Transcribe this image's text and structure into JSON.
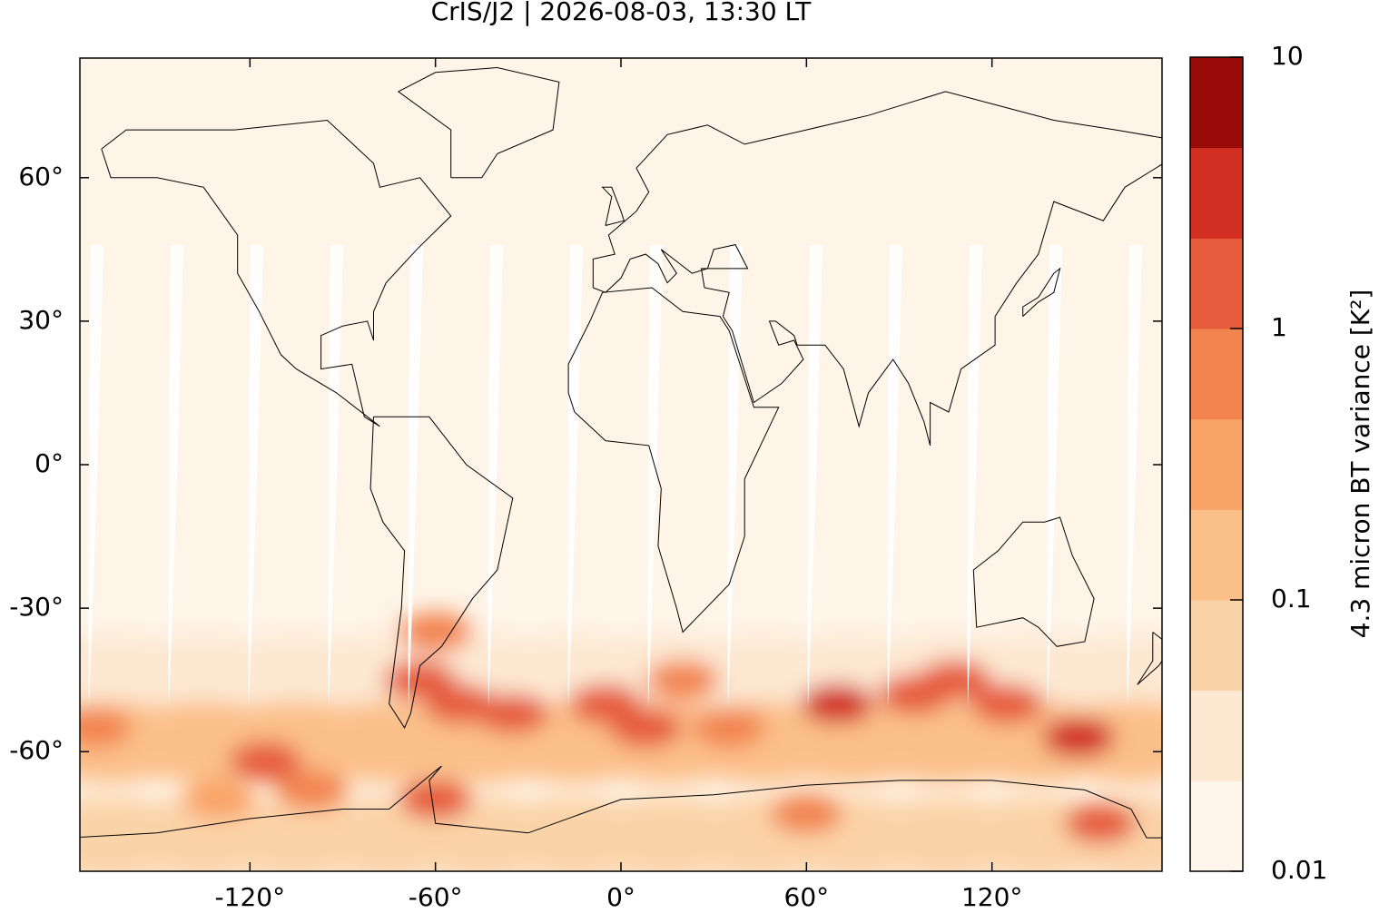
{
  "chart_data": {
    "type": "contour-map",
    "title": "CrIS/J2 | 2026-08-03, 13:30 LT",
    "xlim": [
      -175,
      175
    ],
    "ylim": [
      -85,
      85
    ],
    "xticks": [
      {
        "value": -120,
        "label": "-120°"
      },
      {
        "value": -60,
        "label": "-60°"
      },
      {
        "value": 0,
        "label": "0°"
      },
      {
        "value": 60,
        "label": "60°"
      },
      {
        "value": 120,
        "label": "120°"
      }
    ],
    "yticks": [
      {
        "value": 60,
        "label": "60°"
      },
      {
        "value": 30,
        "label": "30°"
      },
      {
        "value": 0,
        "label": "0°"
      },
      {
        "value": -30,
        "label": "-30°"
      },
      {
        "value": -60,
        "label": "-60°"
      }
    ],
    "colorbar": {
      "label": "4.3 micron BT variance [K²]",
      "log": true,
      "lim": [
        0.01,
        10
      ],
      "ticks": [
        0.01,
        0.1,
        1,
        10
      ],
      "colors": [
        "#fff5eb",
        "#fde8d2",
        "#fbd3a8",
        "#fbc08a",
        "#f9a367",
        "#f2844f",
        "#e65b3c",
        "#d22f22",
        "#990b08"
      ]
    },
    "field": {
      "lon": [
        -165,
        -135,
        -105,
        -75,
        -45,
        -15,
        15,
        45,
        75,
        105,
        135,
        165,
        -165,
        -135,
        -105,
        -75,
        -45,
        -15,
        15,
        45,
        75,
        105,
        135,
        165,
        -165,
        -135,
        -105,
        -75,
        -45,
        -15,
        15,
        45,
        75,
        105,
        135,
        165,
        -60,
        20,
        -130,
        -170,
        -100,
        60,
        35,
        -115,
        -5,
        125,
        -35,
        -52,
        95,
        155,
        -60,
        8,
        108,
        -65,
        148,
        70
      ],
      "lat": [
        -44,
        -44,
        -44,
        -44,
        -44,
        -44,
        -44,
        -44,
        -44,
        -44,
        -44,
        -44,
        -58,
        -58,
        -58,
        -58,
        -58,
        -58,
        -58,
        -58,
        -58,
        -58,
        -58,
        -58,
        -78,
        -78,
        -78,
        -78,
        -78,
        -78,
        -78,
        -78,
        -78,
        -78,
        -78,
        -78,
        -35,
        -45,
        -70,
        -55,
        -68,
        -73,
        -55,
        -62,
        -50,
        -50,
        -52,
        -50,
        -48,
        -75,
        -70,
        -55,
        -45,
        -45,
        -57,
        -50
      ],
      "values": [
        0.04,
        0.04,
        0.04,
        0.04,
        0.04,
        0.04,
        0.04,
        0.04,
        0.04,
        0.04,
        0.04,
        0.04,
        0.15,
        0.15,
        0.15,
        0.15,
        0.15,
        0.15,
        0.15,
        0.15,
        0.15,
        0.15,
        0.15,
        0.15,
        0.05,
        0.05,
        0.05,
        0.05,
        0.05,
        0.05,
        0.05,
        0.05,
        0.05,
        0.05,
        0.05,
        0.05,
        0.6,
        0.5,
        0.4,
        0.8,
        0.8,
        0.8,
        0.8,
        1,
        1,
        1,
        1.2,
        1.5,
        1.5,
        1.5,
        2,
        1.5,
        2,
        1.5,
        2.5,
        2.5
      ]
    }
  }
}
